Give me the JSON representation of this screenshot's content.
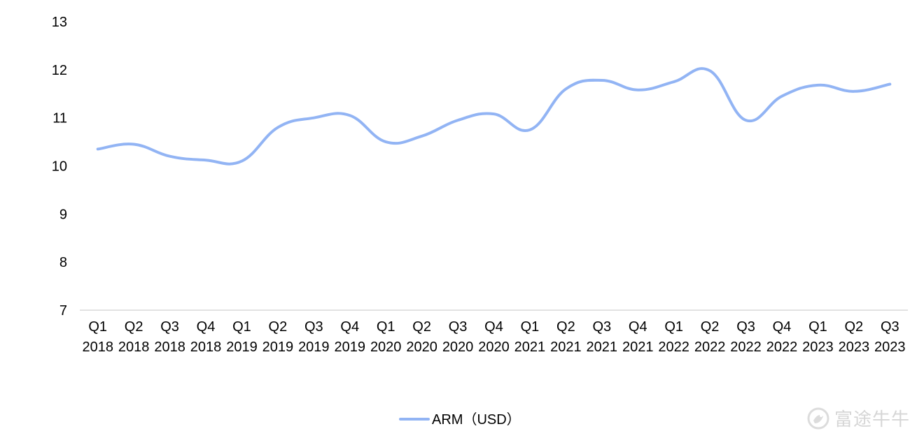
{
  "chart_data": {
    "type": "line",
    "categories": [
      [
        "Q1",
        "2018"
      ],
      [
        "Q2",
        "2018"
      ],
      [
        "Q3",
        "2018"
      ],
      [
        "Q4",
        "2018"
      ],
      [
        "Q1",
        "2019"
      ],
      [
        "Q2",
        "2019"
      ],
      [
        "Q3",
        "2019"
      ],
      [
        "Q4",
        "2019"
      ],
      [
        "Q1",
        "2020"
      ],
      [
        "Q2",
        "2020"
      ],
      [
        "Q3",
        "2020"
      ],
      [
        "Q4",
        "2020"
      ],
      [
        "Q1",
        "2021"
      ],
      [
        "Q2",
        "2021"
      ],
      [
        "Q3",
        "2021"
      ],
      [
        "Q4",
        "2021"
      ],
      [
        "Q1",
        "2022"
      ],
      [
        "Q2",
        "2022"
      ],
      [
        "Q3",
        "2022"
      ],
      [
        "Q4",
        "2022"
      ],
      [
        "Q1",
        "2023"
      ],
      [
        "Q2",
        "2023"
      ],
      [
        "Q3",
        "2023"
      ]
    ],
    "series": [
      {
        "name": "ARM（USD）",
        "color": "#92b4f4",
        "values": [
          10.35,
          10.45,
          10.2,
          10.12,
          10.1,
          10.8,
          11.0,
          11.05,
          10.5,
          10.62,
          10.95,
          11.08,
          10.75,
          11.6,
          11.78,
          11.58,
          11.75,
          11.98,
          10.95,
          11.45,
          11.68,
          11.55,
          11.7
        ]
      }
    ],
    "ylim": [
      7,
      13
    ],
    "yticks": [
      7,
      8,
      9,
      10,
      11,
      12,
      13
    ],
    "grid": false,
    "legend": "bottom-center"
  },
  "watermark": {
    "text": "富途牛牛",
    "icon": "futu-logo-icon"
  }
}
